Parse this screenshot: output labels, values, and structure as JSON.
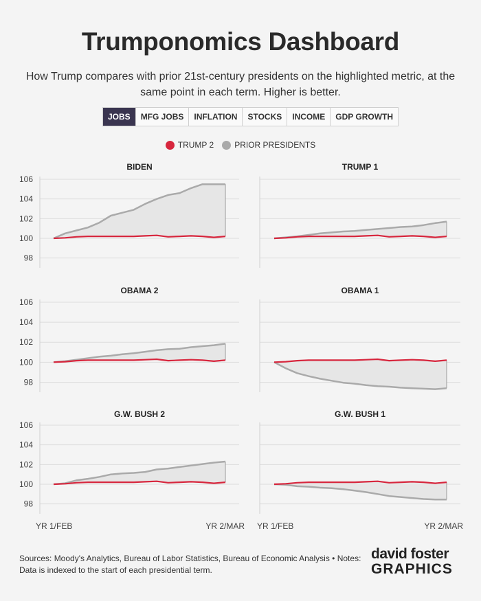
{
  "title": "Trumponomics Dashboard",
  "subtitle": "How Trump compares with prior 21st-century presidents on the highlighted metric, at the same point in each term. Higher is better.",
  "tabs": [
    {
      "label": "JOBS",
      "active": true
    },
    {
      "label": "MFG JOBS",
      "active": false
    },
    {
      "label": "INFLATION",
      "active": false
    },
    {
      "label": "STOCKS",
      "active": false
    },
    {
      "label": "INCOME",
      "active": false
    },
    {
      "label": "GDP GROWTH",
      "active": false
    }
  ],
  "legend": {
    "trump": {
      "label": "TRUMP 2",
      "color": "#d7263d"
    },
    "prior": {
      "label": "PRIOR PRESIDENTS",
      "color": "#aaaaaa"
    }
  },
  "sources": "Sources: Moody's Analytics, Bureau of Labor Statistics, Bureau of Economic Analysis • Notes: Data is indexed to the start of each presidential term.",
  "logo": {
    "line1": "david foster",
    "line2": "GRAPHICS"
  },
  "chart_data": [
    {
      "type": "line",
      "title": "BIDEN",
      "ylim": [
        97,
        106
      ],
      "yticks": [
        98,
        100,
        102,
        104,
        106
      ],
      "xticks": [
        "",
        ""
      ],
      "series": [
        {
          "name": "TRUMP 2",
          "values": [
            100,
            100.05,
            100.15,
            100.2,
            100.2,
            100.2,
            100.2,
            100.2,
            100.25,
            100.3,
            100.15,
            100.2,
            100.25,
            100.2,
            100.1,
            100.2
          ]
        },
        {
          "name": "PRIOR PRESIDENTS",
          "values": [
            100,
            100.5,
            100.8,
            101.1,
            101.6,
            102.3,
            102.6,
            102.9,
            103.5,
            104.0,
            104.4,
            104.6,
            105.1,
            105.5,
            105.5,
            105.5
          ]
        }
      ]
    },
    {
      "type": "line",
      "title": "TRUMP 1",
      "ylim": [
        97,
        106
      ],
      "yticks": [
        98,
        100,
        102,
        104,
        106
      ],
      "xticks": [
        "",
        ""
      ],
      "series": [
        {
          "name": "TRUMP 2",
          "values": [
            100,
            100.05,
            100.15,
            100.2,
            100.2,
            100.2,
            100.2,
            100.2,
            100.25,
            100.3,
            100.15,
            100.2,
            100.25,
            100.2,
            100.1,
            100.2
          ]
        },
        {
          "name": "PRIOR PRESIDENTS",
          "values": [
            100,
            100.1,
            100.2,
            100.35,
            100.5,
            100.6,
            100.7,
            100.75,
            100.85,
            100.95,
            101.05,
            101.15,
            101.2,
            101.35,
            101.55,
            101.7
          ]
        }
      ]
    },
    {
      "type": "line",
      "title": "OBAMA 2",
      "ylim": [
        97,
        106
      ],
      "yticks": [
        98,
        100,
        102,
        104,
        106
      ],
      "xticks": [
        "",
        ""
      ],
      "series": [
        {
          "name": "TRUMP 2",
          "values": [
            100,
            100.05,
            100.15,
            100.2,
            100.2,
            100.2,
            100.2,
            100.2,
            100.25,
            100.3,
            100.15,
            100.2,
            100.25,
            100.2,
            100.1,
            100.2
          ]
        },
        {
          "name": "PRIOR PRESIDENTS",
          "values": [
            100,
            100.1,
            100.25,
            100.4,
            100.55,
            100.65,
            100.8,
            100.9,
            101.05,
            101.2,
            101.3,
            101.35,
            101.5,
            101.6,
            101.7,
            101.85
          ]
        }
      ]
    },
    {
      "type": "line",
      "title": "OBAMA 1",
      "ylim": [
        97,
        106
      ],
      "yticks": [
        98,
        100,
        102,
        104,
        106
      ],
      "xticks": [
        "",
        ""
      ],
      "series": [
        {
          "name": "TRUMP 2",
          "values": [
            100,
            100.05,
            100.15,
            100.2,
            100.2,
            100.2,
            100.2,
            100.2,
            100.25,
            100.3,
            100.15,
            100.2,
            100.25,
            100.2,
            100.1,
            100.2
          ]
        },
        {
          "name": "PRIOR PRESIDENTS",
          "values": [
            100,
            99.4,
            98.9,
            98.6,
            98.35,
            98.15,
            97.95,
            97.85,
            97.7,
            97.6,
            97.55,
            97.45,
            97.4,
            97.35,
            97.3,
            97.4
          ]
        }
      ]
    },
    {
      "type": "line",
      "title": "G.W. BUSH 2",
      "ylim": [
        97,
        106
      ],
      "yticks": [
        98,
        100,
        102,
        104,
        106
      ],
      "xticks": [
        "YR 1/FEB",
        "YR 2/MAR"
      ],
      "series": [
        {
          "name": "TRUMP 2",
          "values": [
            100,
            100.05,
            100.15,
            100.2,
            100.2,
            100.2,
            100.2,
            100.2,
            100.25,
            100.3,
            100.15,
            100.2,
            100.25,
            100.2,
            100.1,
            100.2
          ]
        },
        {
          "name": "PRIOR PRESIDENTS",
          "values": [
            100,
            100.1,
            100.4,
            100.55,
            100.75,
            101.0,
            101.1,
            101.15,
            101.25,
            101.5,
            101.6,
            101.75,
            101.9,
            102.05,
            102.2,
            102.3
          ]
        }
      ]
    },
    {
      "type": "line",
      "title": "G.W. BUSH 1",
      "ylim": [
        97,
        106
      ],
      "yticks": [
        98,
        100,
        102,
        104,
        106
      ],
      "xticks": [
        "YR 1/FEB",
        "YR 2/MAR"
      ],
      "series": [
        {
          "name": "TRUMP 2",
          "values": [
            100,
            100.05,
            100.15,
            100.2,
            100.2,
            100.2,
            100.2,
            100.2,
            100.25,
            100.3,
            100.15,
            100.2,
            100.25,
            100.2,
            100.1,
            100.2
          ]
        },
        {
          "name": "PRIOR PRESIDENTS",
          "values": [
            100,
            99.95,
            99.8,
            99.75,
            99.65,
            99.6,
            99.5,
            99.35,
            99.2,
            99.0,
            98.8,
            98.7,
            98.6,
            98.5,
            98.45,
            98.45
          ]
        }
      ]
    }
  ]
}
